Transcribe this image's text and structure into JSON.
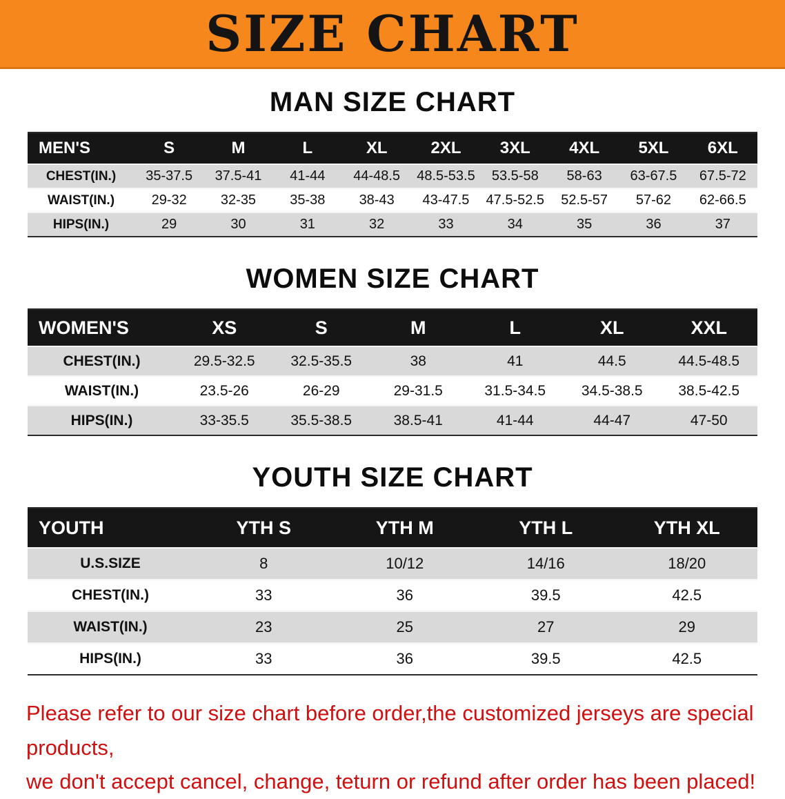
{
  "banner": {
    "title": "SIZE CHART",
    "bg_color": "#f6871d",
    "text_color": "#141414"
  },
  "sections": [
    {
      "heading": "MAN SIZE CHART",
      "table": {
        "header": [
          "MEN'S",
          "S",
          "M",
          "L",
          "XL",
          "2XL",
          "3XL",
          "4XL",
          "5XL",
          "6XL"
        ],
        "rows": [
          [
            "CHEST(IN.)",
            "35-37.5",
            "37.5-41",
            "41-44",
            "44-48.5",
            "48.5-53.5",
            "53.5-58",
            "58-63",
            "63-67.5",
            "67.5-72"
          ],
          [
            "WAIST(IN.)",
            "29-32",
            "32-35",
            "35-38",
            "38-43",
            "43-47.5",
            "47.5-52.5",
            "52.5-57",
            "57-62",
            "62-66.5"
          ],
          [
            "HIPS(IN.)",
            "29",
            "30",
            "31",
            "32",
            "33",
            "34",
            "35",
            "36",
            "37"
          ]
        ]
      }
    },
    {
      "heading": "WOMEN SIZE CHART",
      "table": {
        "header": [
          "WOMEN'S",
          "XS",
          "S",
          "M",
          "L",
          "XL",
          "XXL"
        ],
        "rows": [
          [
            "CHEST(IN.)",
            "29.5-32.5",
            "32.5-35.5",
            "38",
            "41",
            "44.5",
            "44.5-48.5"
          ],
          [
            "WAIST(IN.)",
            "23.5-26",
            "26-29",
            "29-31.5",
            "31.5-34.5",
            "34.5-38.5",
            "38.5-42.5"
          ],
          [
            "HIPS(IN.)",
            "33-35.5",
            "35.5-38.5",
            "38.5-41",
            "41-44",
            "44-47",
            "47-50"
          ]
        ]
      }
    },
    {
      "heading": "YOUTH SIZE CHART",
      "table": {
        "header": [
          "YOUTH",
          "YTH S",
          "YTH M",
          "YTH L",
          "YTH XL"
        ],
        "rows": [
          [
            "U.S.SIZE",
            "8",
            "10/12",
            "14/16",
            "18/20"
          ],
          [
            "CHEST(IN.)",
            "33",
            "36",
            "39.5",
            "42.5"
          ],
          [
            "WAIST(IN.)",
            "23",
            "25",
            "27",
            "29"
          ],
          [
            "HIPS(IN.)",
            "33",
            "36",
            "39.5",
            "42.5"
          ]
        ]
      }
    }
  ],
  "footer": {
    "color": "#d01010",
    "line1": "Please refer to our size chart before order,the customized jerseys are special products,",
    "line2": "we don't accept cancel, change, teturn or refund after order has been placed!"
  }
}
